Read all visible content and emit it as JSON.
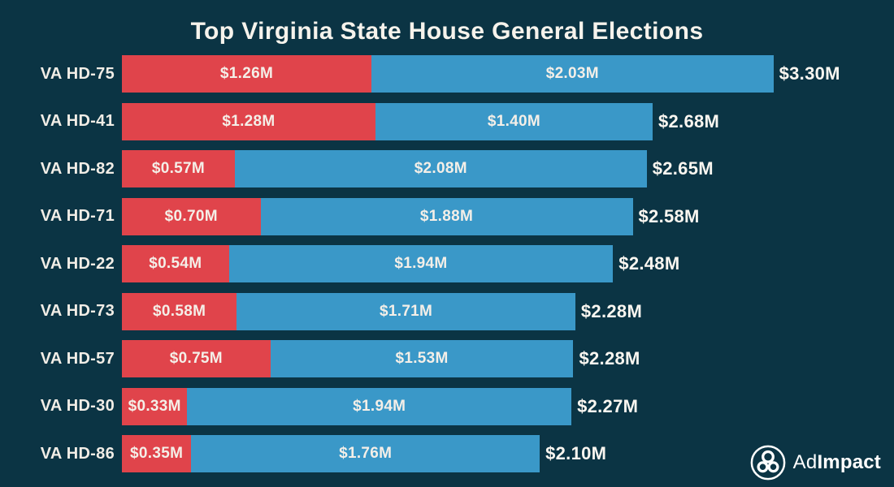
{
  "chart_data": {
    "type": "bar",
    "orientation": "horizontal",
    "stacked": true,
    "title": "Top Virginia State House General Elections",
    "categories": [
      "VA HD-75",
      "VA HD-41",
      "VA HD-82",
      "VA HD-71",
      "VA HD-22",
      "VA HD-73",
      "VA HD-57",
      "VA HD-30",
      "VA HD-86"
    ],
    "series": [
      {
        "name": "republican-spending",
        "color": "#e0444b",
        "values": [
          1.26,
          1.28,
          0.57,
          0.7,
          0.54,
          0.58,
          0.75,
          0.33,
          0.35
        ],
        "labels": [
          "$1.26M",
          "$1.28M",
          "$0.57M",
          "$0.70M",
          "$0.54M",
          "$0.58M",
          "$0.75M",
          "$0.33M",
          "$0.35M"
        ]
      },
      {
        "name": "democratic-spending",
        "color": "#3a98c8",
        "values": [
          2.03,
          1.4,
          2.08,
          1.88,
          1.94,
          1.71,
          1.53,
          1.94,
          1.76
        ],
        "labels": [
          "$2.03M",
          "$1.40M",
          "$2.08M",
          "$1.88M",
          "$1.94M",
          "$1.71M",
          "$1.53M",
          "$1.94M",
          "$1.76M"
        ]
      }
    ],
    "totals": [
      3.3,
      2.68,
      2.65,
      2.58,
      2.48,
      2.28,
      2.28,
      2.27,
      2.1
    ],
    "total_labels": [
      "$3.30M",
      "$2.68M",
      "$2.65M",
      "$2.58M",
      "$2.48M",
      "$2.28M",
      "$2.28M",
      "$2.27M",
      "$2.10M"
    ],
    "xlim": [
      0,
      3.3
    ],
    "unit": "millions USD",
    "grid": false,
    "legend": "none",
    "background_color": "#0b3444",
    "text_color": "#f4efe8"
  },
  "branding": {
    "logo_text_regular": "Ad",
    "logo_text_bold": "Impact",
    "logo_icon": "adimpact-circles-icon"
  }
}
